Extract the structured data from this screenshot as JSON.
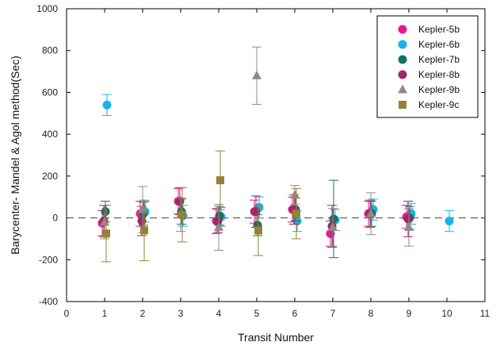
{
  "chart_data": {
    "type": "scatter",
    "title": "",
    "xlabel": "Transit Number",
    "ylabel": "Barycenter- Mandel & Agol method(Sec)",
    "xlim": [
      0,
      11
    ],
    "ylim": [
      -400,
      1000
    ],
    "xticks": [
      0,
      1,
      2,
      3,
      4,
      5,
      6,
      7,
      8,
      9,
      10,
      11
    ],
    "yticks": [
      -400,
      -200,
      0,
      200,
      400,
      600,
      800,
      1000
    ],
    "reference_line": {
      "y": 0,
      "style": "dashed",
      "color": "#555555"
    },
    "grid": false,
    "legend_position": "top-right",
    "series": [
      {
        "name": "Kepler-5b",
        "color": "#e6188f",
        "marker": "circle",
        "points": [
          {
            "x": 1,
            "y": -25,
            "err": 60
          },
          {
            "x": 2,
            "y": 20,
            "err": 60
          },
          {
            "x": 3,
            "y": 80,
            "err": 60
          },
          {
            "x": 4,
            "y": -15,
            "err": 60
          },
          {
            "x": 5,
            "y": 30,
            "err": 55
          },
          {
            "x": 6,
            "y": 40,
            "err": 60
          },
          {
            "x": 7,
            "y": -75,
            "err": 60
          },
          {
            "x": 8,
            "y": 20,
            "err": 60
          },
          {
            "x": 9,
            "y": 5,
            "err": 55
          }
        ]
      },
      {
        "name": "Kepler-6b",
        "color": "#1ab2e8",
        "marker": "circle",
        "points": [
          {
            "x": 1,
            "y": 540,
            "err": 50
          },
          {
            "x": 2,
            "y": 30,
            "err": 50
          },
          {
            "x": 3,
            "y": 10,
            "err": 50
          },
          {
            "x": 4,
            "y": 5,
            "err": 45
          },
          {
            "x": 5,
            "y": 50,
            "err": 50
          },
          {
            "x": 6,
            "y": -15,
            "err": 50
          },
          {
            "x": 7,
            "y": -10,
            "err": 50
          },
          {
            "x": 8,
            "y": 40,
            "err": 50
          },
          {
            "x": 9,
            "y": 20,
            "err": 50
          },
          {
            "x": 10,
            "y": -15,
            "err": 50
          }
        ]
      },
      {
        "name": "Kepler-7b",
        "color": "#14755a",
        "marker": "circle",
        "points": [
          {
            "x": 1,
            "y": 30,
            "err": 50
          },
          {
            "x": 2,
            "y": 20,
            "err": 55
          },
          {
            "x": 3,
            "y": 30,
            "err": 60
          },
          {
            "x": 4,
            "y": 10,
            "err": 45
          },
          {
            "x": 5,
            "y": -35,
            "err": 50
          },
          {
            "x": 6,
            "y": 40,
            "err": 55
          },
          {
            "x": 7,
            "y": -5,
            "err": 185
          },
          {
            "x": 8,
            "y": 20,
            "err": 60
          },
          {
            "x": 9,
            "y": 0,
            "err": 55
          }
        ]
      },
      {
        "name": "Kepler-8b",
        "color": "#9b2a62",
        "marker": "circle",
        "points": [
          {
            "x": 1,
            "y": -15,
            "err": 75
          },
          {
            "x": 2,
            "y": -15,
            "err": 70
          },
          {
            "x": 3,
            "y": 80,
            "err": 65
          },
          {
            "x": 4,
            "y": -15,
            "err": 55
          },
          {
            "x": 5,
            "y": 30,
            "err": 75
          },
          {
            "x": 6,
            "y": 40,
            "err": 70
          },
          {
            "x": 7,
            "y": -40,
            "err": 100
          },
          {
            "x": 8,
            "y": 20,
            "err": 65
          },
          {
            "x": 9,
            "y": -5,
            "err": 85
          }
        ]
      },
      {
        "name": "Kepler-9b",
        "color": "#948784",
        "marker": "triangle",
        "points": [
          {
            "x": 1,
            "y": -20,
            "err": 80
          },
          {
            "x": 2,
            "y": 40,
            "err": 110
          },
          {
            "x": 3,
            "y": 15,
            "err": 80
          },
          {
            "x": 4,
            "y": -45,
            "err": 110
          },
          {
            "x": 5,
            "y": 680,
            "err": 137
          },
          {
            "x": 6,
            "y": 110,
            "err": 45
          },
          {
            "x": 7,
            "y": -45,
            "err": 90
          },
          {
            "x": 8,
            "y": 20,
            "err": 100
          },
          {
            "x": 9,
            "y": -45,
            "err": 90
          }
        ]
      },
      {
        "name": "Kepler-9c",
        "color": "#958234",
        "marker": "square",
        "points": [
          {
            "x": 1,
            "y": -75,
            "err": 135
          },
          {
            "x": 2,
            "y": -60,
            "err": 145
          },
          {
            "x": 3,
            "y": 15,
            "err": 130
          },
          {
            "x": 4,
            "y": 180,
            "err": 140
          },
          {
            "x": 5,
            "y": -60,
            "err": 120
          },
          {
            "x": 6,
            "y": 20,
            "err": 120
          }
        ]
      }
    ]
  }
}
